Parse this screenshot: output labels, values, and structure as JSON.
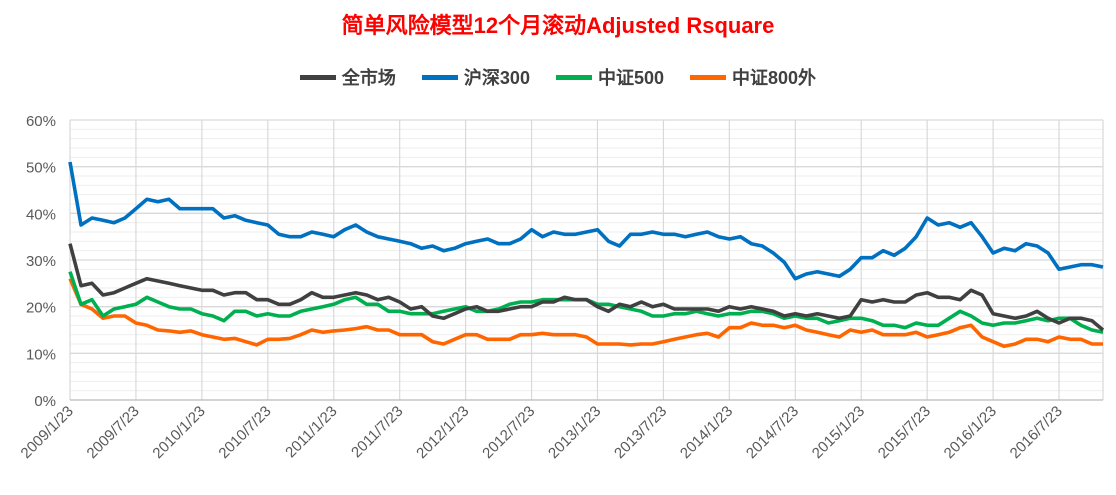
{
  "chart_data": {
    "type": "line",
    "title": "简单风险模型12个月滚动Adjusted Rsquare",
    "xlabel": "",
    "ylabel": "",
    "x_frequency": "monthly",
    "x_tick_labels": [
      "2009/1/23",
      "2009/7/23",
      "2010/1/23",
      "2010/7/23",
      "2011/1/23",
      "2011/7/23",
      "2012/1/23",
      "2012/7/23",
      "2013/1/23",
      "2013/7/23",
      "2014/1/23",
      "2014/7/23",
      "2015/1/23",
      "2015/7/23",
      "2016/1/23",
      "2016/7/23"
    ],
    "y_ticks": [
      "0%",
      "10%",
      "20%",
      "30%",
      "40%",
      "50%",
      "60%"
    ],
    "ylim": [
      0,
      60
    ],
    "grid": true,
    "legend_position": "top-center",
    "series": [
      {
        "name": "全市场",
        "color": "#404040",
        "values": [
          33.5,
          24.5,
          25,
          22.5,
          23,
          24,
          25,
          26,
          25.5,
          25,
          24.5,
          24,
          23.5,
          23.5,
          22.5,
          23,
          23,
          21.5,
          21.5,
          20.5,
          20.5,
          21.5,
          23,
          22,
          22,
          22.5,
          23,
          22.5,
          21.5,
          22,
          21,
          19.5,
          20,
          18,
          17.5,
          18.5,
          19.5,
          20,
          19,
          19,
          19.5,
          20,
          20,
          21,
          21,
          22,
          21.5,
          21.5,
          20,
          19,
          20.5,
          20,
          21,
          20,
          20.5,
          19.5,
          19.5,
          19.5,
          19.5,
          19,
          20,
          19.5,
          20,
          19.5,
          19,
          18,
          18.5,
          18,
          18.5,
          18,
          17.5,
          18,
          21.5,
          21,
          21.5,
          21,
          21,
          22.5,
          23,
          22,
          22,
          21.5,
          23.5,
          22.5,
          18.5,
          18,
          17.5,
          18,
          19,
          17.5,
          16.5,
          17.5,
          17.5,
          17,
          15
        ]
      },
      {
        "name": "沪深300",
        "color": "#0070c0",
        "values": [
          51,
          37.5,
          39,
          38.5,
          38,
          39,
          41,
          43,
          42.5,
          43,
          41,
          41,
          41,
          41,
          39,
          39.5,
          38.5,
          38,
          37.5,
          35.5,
          35,
          35,
          36,
          35.5,
          35,
          36.5,
          37.5,
          36,
          35,
          34.5,
          34,
          33.5,
          32.5,
          33,
          32,
          32.5,
          33.5,
          34,
          34.5,
          33.5,
          33.5,
          34.5,
          36.5,
          35,
          36,
          35.5,
          35.5,
          36,
          36.5,
          34,
          33,
          35.5,
          35.5,
          36,
          35.5,
          35.5,
          35,
          35.5,
          36,
          35,
          34.5,
          35,
          33.5,
          33,
          31.5,
          29.5,
          26,
          27,
          27.5,
          27,
          26.5,
          28,
          30.5,
          30.5,
          32,
          31,
          32.5,
          35,
          39,
          37.5,
          38,
          37,
          38,
          35,
          31.5,
          32.5,
          32,
          33.5,
          33,
          31.5,
          28,
          28.5,
          29,
          29,
          28.5
        ]
      },
      {
        "name": "中证500",
        "color": "#00b050",
        "values": [
          27.5,
          20.5,
          21.5,
          18,
          19.5,
          20,
          20.5,
          22,
          21,
          20,
          19.5,
          19.5,
          18.5,
          18,
          17,
          19,
          19,
          18,
          18.5,
          18,
          18,
          19,
          19.5,
          20,
          20.5,
          21.5,
          22,
          20.5,
          20.5,
          19,
          19,
          18.5,
          18.5,
          18.5,
          19,
          19.5,
          20,
          19,
          19,
          19.5,
          20.5,
          21,
          21,
          21.5,
          21.5,
          21.5,
          21.5,
          21.5,
          20.5,
          20.5,
          20,
          19.5,
          19,
          18,
          18,
          18.5,
          18.5,
          19,
          18.5,
          18,
          18.5,
          18.5,
          19,
          19,
          18.5,
          17.5,
          18,
          17.5,
          17.5,
          16.5,
          17,
          17.5,
          17.5,
          17,
          16,
          16,
          15.5,
          16.5,
          16,
          16,
          17.5,
          19,
          18,
          16.5,
          16,
          16.5,
          16.5,
          17,
          17.5,
          17,
          17.5,
          17.5,
          16,
          15,
          14.5
        ]
      },
      {
        "name": "中证800外",
        "color": "#ff6600",
        "values": [
          26,
          20.5,
          19.5,
          17.5,
          18,
          18,
          16.5,
          16,
          15,
          14.8,
          14.5,
          14.8,
          14,
          13.5,
          13,
          13.2,
          12.5,
          11.8,
          13,
          13,
          13.2,
          14,
          15,
          14.5,
          14.8,
          15,
          15.3,
          15.7,
          15,
          15,
          14,
          14,
          14,
          12.5,
          12,
          13,
          14,
          14,
          13,
          13,
          13,
          14,
          14,
          14.3,
          14,
          14,
          14,
          13.5,
          12,
          12,
          12,
          11.8,
          12,
          12,
          12.5,
          13,
          13.5,
          14,
          14.3,
          13.5,
          15.5,
          15.5,
          16.5,
          16,
          16,
          15.5,
          16,
          15,
          14.5,
          14,
          13.5,
          15,
          14.5,
          15,
          14,
          14,
          14,
          14.5,
          13.5,
          14,
          14.5,
          15.5,
          16,
          13.5,
          12.5,
          11.5,
          12,
          13,
          13,
          12.5,
          13.5,
          13,
          13,
          12,
          12
        ]
      }
    ]
  }
}
